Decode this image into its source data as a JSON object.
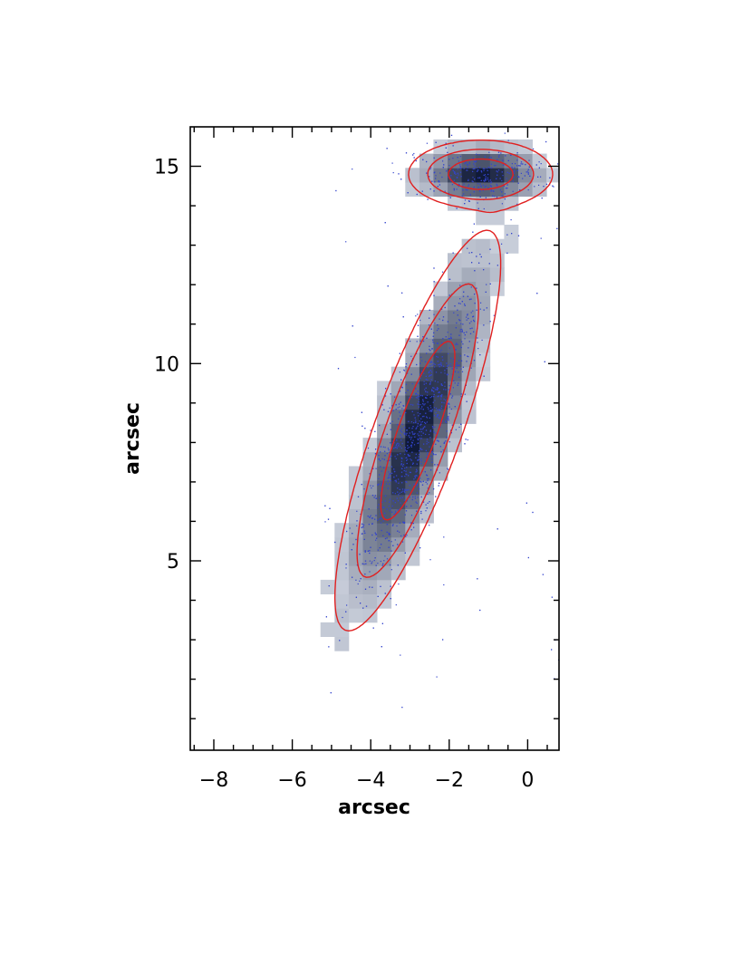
{
  "chart_data": {
    "type": "heatmap",
    "title": "",
    "xlabel": "arcsec",
    "ylabel": "arcsec",
    "xlim": [
      -8.6,
      0.8
    ],
    "ylim": [
      0.2,
      16.0
    ],
    "x_ticks": [
      -8,
      -6,
      -4,
      -2,
      0
    ],
    "x_tick_labels": [
      "−8",
      "−6",
      "−4",
      "−2",
      "0"
    ],
    "y_ticks": [
      5,
      10,
      15
    ],
    "y_tick_labels": [
      "5",
      "10",
      "15"
    ],
    "grid": false,
    "legend": "none",
    "colors": {
      "density_low": "#dfe4ee",
      "density_high": "#101a38",
      "points": "#3344cc",
      "contours": "#e02020"
    },
    "sources": [
      {
        "center": [
          -1.2,
          14.8
        ],
        "sigma_x": 0.75,
        "sigma_y": 0.35,
        "angle_deg": 0,
        "peak": 1.0
      },
      {
        "center": [
          -2.8,
          8.3
        ],
        "sigma_x": 0.45,
        "sigma_y": 2.2,
        "angle_deg": -20,
        "peak": 1.0
      }
    ],
    "contour_levels": [
      0.05,
      0.2,
      0.55
    ],
    "pixel_size_arcsec": 0.36
  }
}
